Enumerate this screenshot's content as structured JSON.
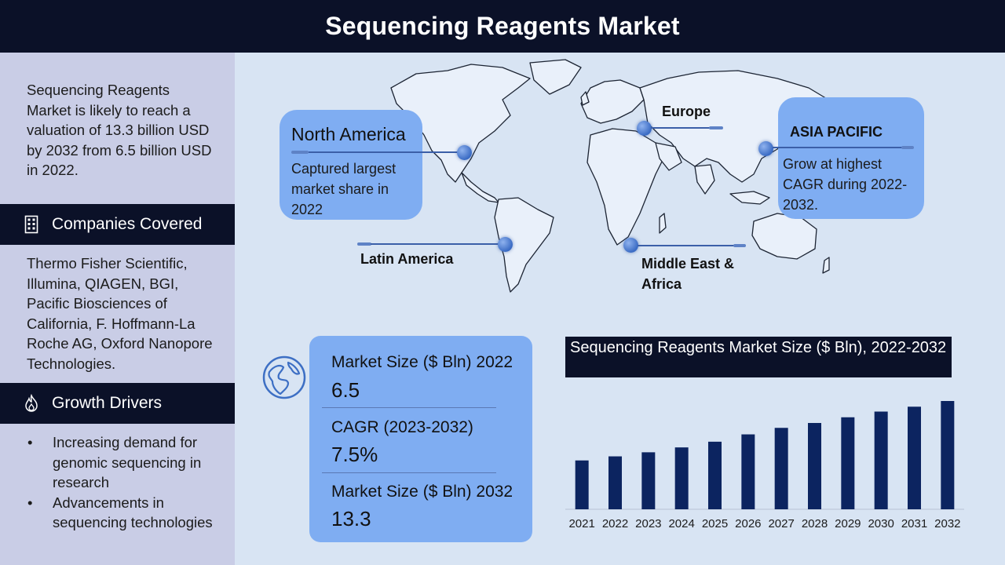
{
  "header": {
    "title": "Sequencing Reagents Market"
  },
  "sidebar": {
    "intro": "Sequencing Reagents Market is likely to reach a valuation of 13.3 billion USD by 2032 from 6.5 billion USD in 2022.",
    "companies_heading": "Companies Covered",
    "companies_icon": "building-icon",
    "companies": "Thermo Fisher Scientific, Illumina, QIAGEN, BGI, Pacific Biosciences of California, F. Hoffmann-La Roche AG, Oxford Nanopore Technologies.",
    "drivers_heading": "Growth Drivers",
    "drivers_icon": "flame-icon",
    "drivers": [
      "Increasing demand for genomic sequencing in research",
      "Advancements in sequencing technologies"
    ]
  },
  "regions": {
    "north_america": {
      "label": "North America",
      "desc": "Captured largest market share in 2022"
    },
    "europe": {
      "label": "Europe"
    },
    "asia_pacific": {
      "label": "ASIA PACIFIC",
      "desc": "Grow at highest CAGR during 2022-2032."
    },
    "latin_america": {
      "label": "Latin America"
    },
    "mea": {
      "label": "Middle East & Africa"
    }
  },
  "stats": {
    "icon": "globe-icon",
    "items": [
      {
        "label": "Market Size ($ Bln) 2022",
        "value": "6.5"
      },
      {
        "label": "CAGR (2023-2032)",
        "value": "7.5%"
      },
      {
        "label": "Market Size ($ Bln) 2032",
        "value": "13.3"
      }
    ]
  },
  "colors": {
    "dark": "#0b1128",
    "sidebar": "#c9cde6",
    "card": "#7fadf2",
    "background": "#d8e4f3",
    "bar": "#0c2460"
  },
  "chart_data": {
    "type": "bar",
    "title": "Sequencing Reagents Market Size ($ Bln), 2022-2032",
    "categories": [
      "2021",
      "2022",
      "2023",
      "2024",
      "2025",
      "2026",
      "2027",
      "2028",
      "2029",
      "2030",
      "2031",
      "2032"
    ],
    "values": [
      6.0,
      6.5,
      7.0,
      7.6,
      8.3,
      9.2,
      10.0,
      10.6,
      11.3,
      12.0,
      12.6,
      13.3
    ],
    "ylim": [
      0,
      13.3
    ],
    "grid": false,
    "legend": "none"
  }
}
